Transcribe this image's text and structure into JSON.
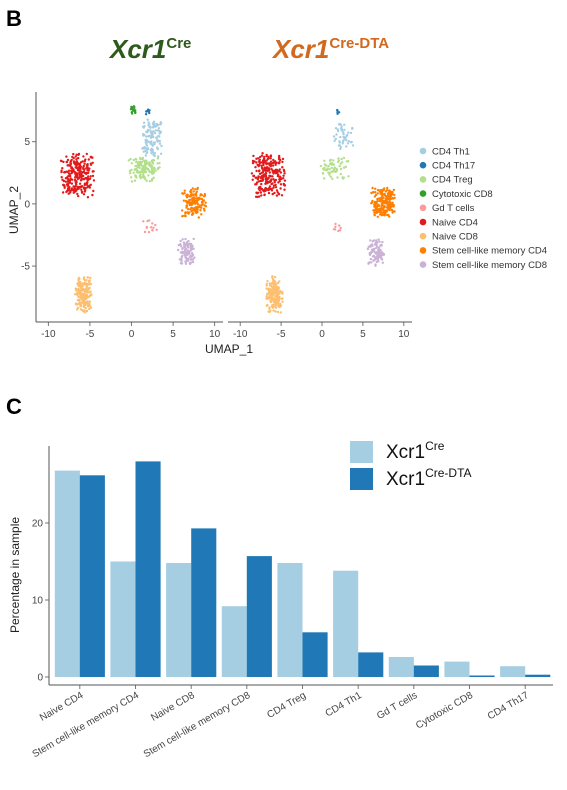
{
  "panel_b": {
    "letter": "B",
    "left_title": {
      "main": "Xcr1",
      "sup": "Cre",
      "color": "#2e5a1c"
    },
    "right_title": {
      "main": "Xcr1",
      "sup": "Cre-DTA",
      "color": "#d2691e"
    }
  },
  "panel_c": {
    "letter": "C"
  },
  "colors": {
    "CD4 Th1": "#a6cee3",
    "CD4 Th17": "#1f78b4",
    "CD4 Treg": "#b2df8a",
    "Cytotoxic CD8": "#33a02c",
    "Gd T cells": "#fb9a99",
    "Naive CD4": "#e31a1c",
    "Naive CD8": "#fdbf6f",
    "Stem cell-like memory CD4": "#ff7f00",
    "Stem cell-like memory CD8": "#cab2d6"
  },
  "chart_data": [
    {
      "type": "scatter",
      "xlabel": "UMAP_1",
      "ylabel": "UMAP_2",
      "panels": [
        "Xcr1Cre",
        "Xcr1Cre-DTA"
      ],
      "xticks": [
        -10,
        -5,
        0,
        5,
        10
      ],
      "yticks": [
        -5,
        0,
        5
      ],
      "xlim": [
        -11,
        11
      ],
      "ylim": [
        -9.5,
        9
      ],
      "legend_position": "right",
      "legend": [
        "CD4 Th1",
        "CD4 Th17",
        "CD4 Treg",
        "Cytotoxic CD8",
        "Gd T cells",
        "Naive CD4",
        "Naive CD8",
        "Stem cell-like memory CD4",
        "Stem cell-like memory CD8"
      ],
      "clusters": [
        {
          "name": "Naive CD4",
          "center": [
            -6.5,
            2.3
          ],
          "spread": [
            2.0,
            1.8
          ],
          "counts": [
            260,
            240
          ]
        },
        {
          "name": "CD4 Treg",
          "center": [
            1.5,
            2.8
          ],
          "spread": [
            1.9,
            1.0
          ],
          "counts": [
            140,
            60
          ]
        },
        {
          "name": "CD4 Th1",
          "center": [
            2.5,
            5.3
          ],
          "spread": [
            1.3,
            1.5
          ],
          "counts": [
            120,
            45
          ]
        },
        {
          "name": "Cytotoxic CD8",
          "center": [
            0.2,
            7.6
          ],
          "spread": [
            0.4,
            0.3
          ],
          "counts": [
            18,
            0
          ]
        },
        {
          "name": "CD4 Th17",
          "center": [
            1.9,
            7.4
          ],
          "spread": [
            0.3,
            0.3
          ],
          "counts": [
            10,
            5
          ]
        },
        {
          "name": "Gd T cells",
          "center": [
            2.2,
            -1.8
          ],
          "spread": [
            0.9,
            0.5
          ],
          "counts": [
            14,
            8
          ]
        },
        {
          "name": "Stem cell-like memory CD4",
          "center": [
            7.5,
            0.1
          ],
          "spread": [
            1.5,
            1.2
          ],
          "counts": [
            150,
            200
          ]
        },
        {
          "name": "Stem cell-like memory CD8",
          "center": [
            6.6,
            -3.9
          ],
          "spread": [
            1.0,
            1.1
          ],
          "counts": [
            100,
            90
          ]
        },
        {
          "name": "Naive CD8",
          "center": [
            -5.8,
            -7.3
          ],
          "spread": [
            1.0,
            1.5
          ],
          "counts": [
            190,
            170
          ]
        }
      ]
    },
    {
      "type": "bar",
      "ylabel": "Percentage in sample",
      "yticks": [
        0,
        10,
        20
      ],
      "ylim": [
        0,
        30
      ],
      "categories": [
        "Naive CD4",
        "Stem cell-like memory CD4",
        "Naive CD8",
        "Stem cell-like memory CD8",
        "CD4 Treg",
        "CD4 Th1",
        "Gd T cells",
        "Cytotoxic CD8",
        "CD4 Th17"
      ],
      "series": [
        {
          "name": "Xcr1Cre",
          "name_main": "Xcr1",
          "name_sup": "Cre",
          "color": "#a6cee3",
          "values": [
            26.8,
            15.0,
            14.8,
            9.2,
            14.8,
            13.8,
            2.6,
            2.0,
            1.4
          ]
        },
        {
          "name": "Xcr1Cre-DTA",
          "name_main": "Xcr1",
          "name_sup": "Cre-DTA",
          "color": "#2079b6",
          "values": [
            26.2,
            28.0,
            19.3,
            15.7,
            5.8,
            3.2,
            1.5,
            0.2,
            0.3
          ]
        }
      ],
      "legend_position": "top-right"
    }
  ]
}
